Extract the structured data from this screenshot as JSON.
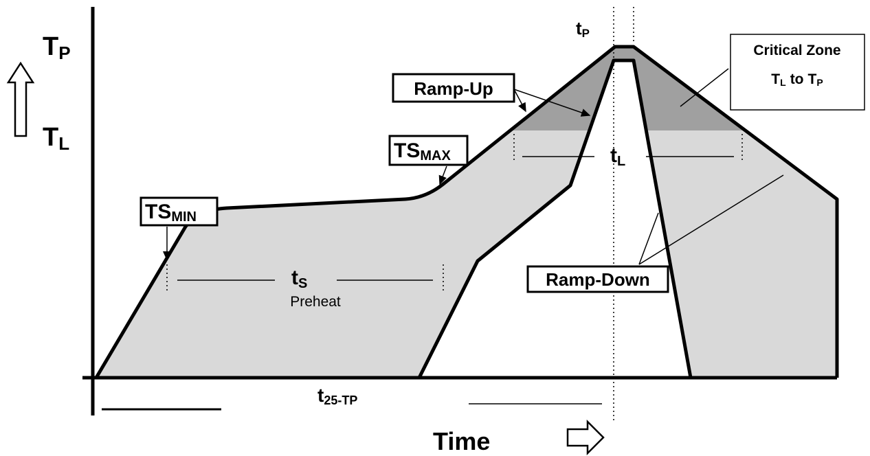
{
  "y_axis": {
    "tp": {
      "main": "T",
      "sub": "P"
    },
    "tl": {
      "main": "T",
      "sub": "L"
    }
  },
  "x_axis": {
    "label": "Time",
    "t25": {
      "main": "t",
      "sub": "25-TP"
    }
  },
  "markers": {
    "tp": {
      "main": "t",
      "sub": "P"
    },
    "tl": {
      "main": "t",
      "sub": "L"
    },
    "ts": {
      "main": "t",
      "sub": "S"
    },
    "preheat": "Preheat"
  },
  "callouts": {
    "ramp_up": "Ramp-Up",
    "ts_max": {
      "main": "TS",
      "sub": "MAX"
    },
    "ts_min": {
      "main": "TS",
      "sub": "MIN"
    },
    "ramp_down": "Ramp-Down",
    "critical_zone": {
      "title": "Critical Zone",
      "from": {
        "main": "T",
        "sub": "L"
      },
      "to_word": "to",
      "to": {
        "main": "T",
        "sub": "P"
      }
    }
  }
}
